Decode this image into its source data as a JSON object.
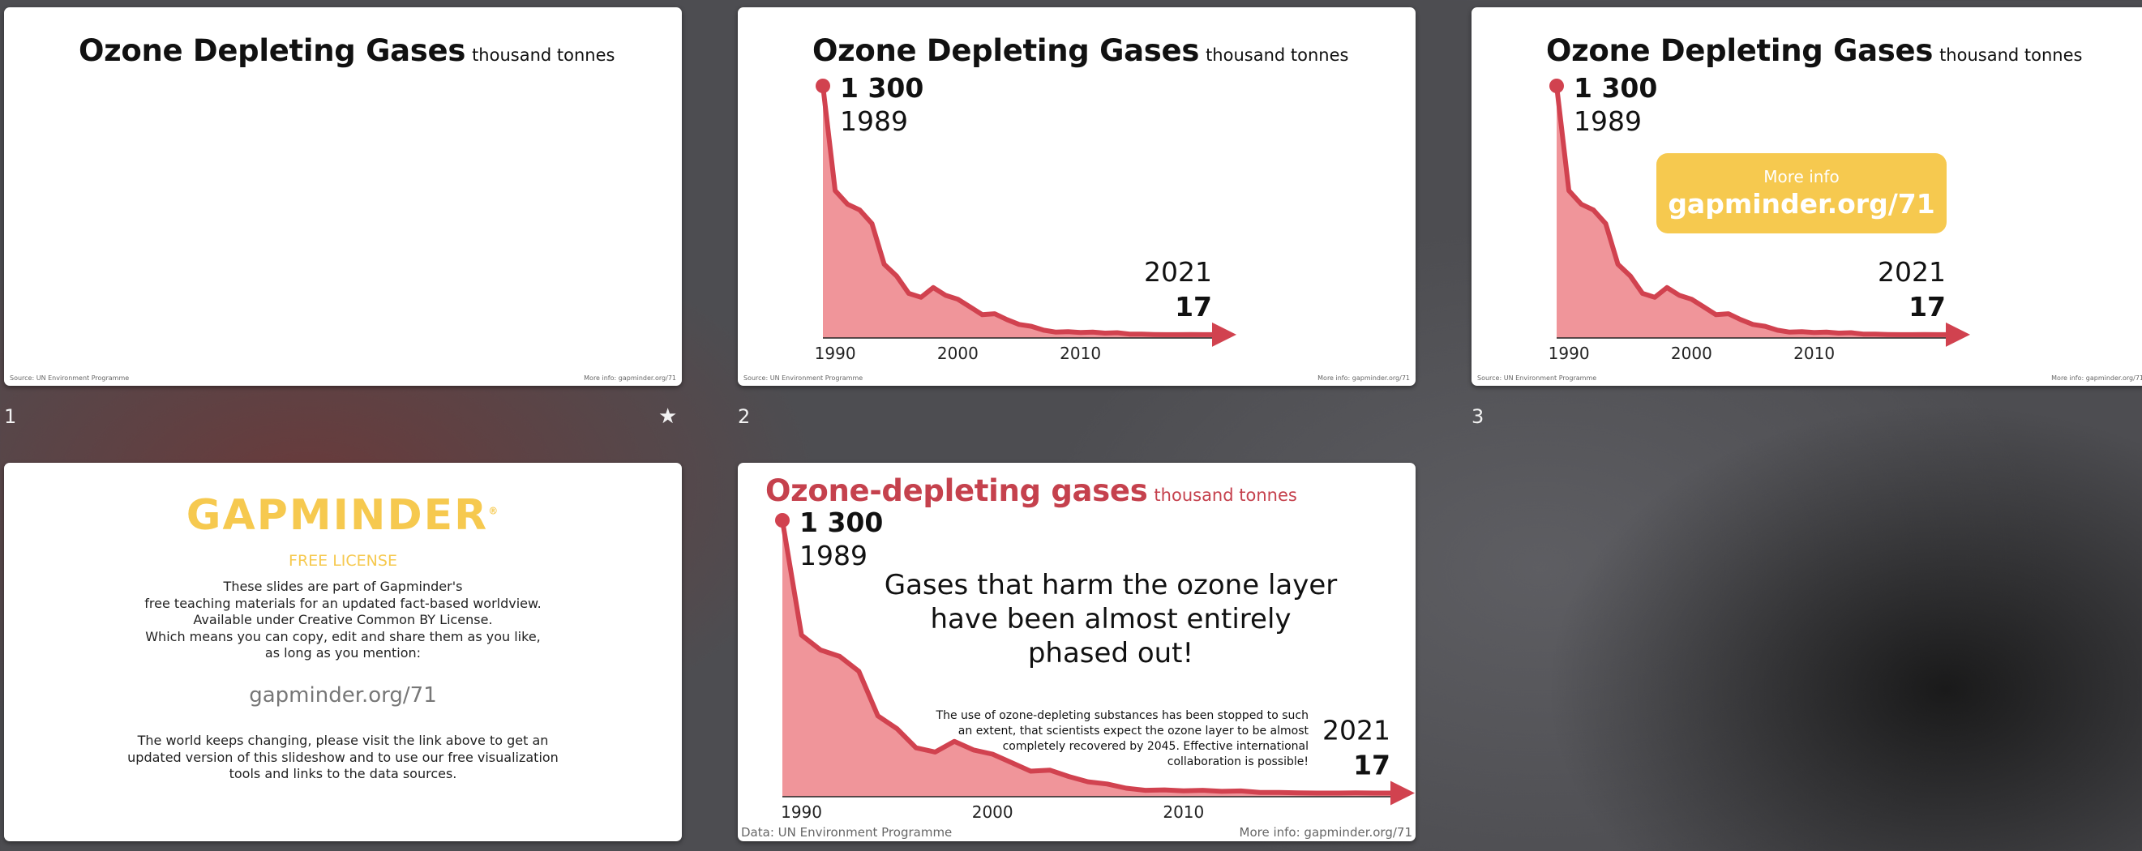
{
  "slides": [
    {
      "number": "1",
      "title": "Ozone Depleting Gases",
      "unit": "thousand tonnes",
      "source": "Source: UN Environment Programme",
      "more_info": "More info: gapminder.org/71",
      "has_chart": false,
      "star_icon": "★"
    },
    {
      "number": "2",
      "title": "Ozone Depleting Gases",
      "unit": "thousand tonnes",
      "source": "Source: UN Environment Programme",
      "more_info": "More info: gapminder.org/71",
      "has_chart": true
    },
    {
      "number": "3",
      "title": "Ozone Depleting Gases",
      "unit": "thousand tonnes",
      "source": "Source: UN Environment Programme",
      "more_info": "More info: gapminder.org/71",
      "has_chart": true,
      "info_box": {
        "small": "More info",
        "big": "gapminder.org/71"
      }
    },
    {
      "number": "",
      "logo": "GAPMINDER",
      "logo_mark": "®",
      "license_head": "FREE LICENSE",
      "license_lines": [
        "These slides are part of Gapminder's",
        "free teaching materials for an updated fact-based worldview.",
        "Available under Creative Common BY License.",
        "Which means you can copy, edit and share them as you like,",
        "as long as you mention:"
      ],
      "license_link": "gapminder.org/71",
      "license_bottom": [
        "The world keeps changing, please visit the link above to get an",
        "updated version of this slideshow and to use our free visualization",
        "tools and links to the data sources."
      ]
    },
    {
      "number": "",
      "title": "Ozone-depleting gases",
      "unit": "thousand tonnes",
      "source": "Data: UN Environment Programme",
      "more_info": "More info: gapminder.org/71",
      "has_chart": true,
      "headline": [
        "Gases that harm the ozone layer",
        "have been almost entirely",
        "phased out!"
      ],
      "body": [
        "The use of ozone-depleting substances has been stopped to such",
        "an extent, that scientists expect the ozone layer to be almost",
        "completely recovered by 2045. Effective international",
        "collaboration is possible!"
      ]
    }
  ],
  "chart_data": {
    "type": "area",
    "title": "Ozone Depleting Gases",
    "unit": "thousand tonnes",
    "color": "#d1424f",
    "fill_color": "#f0959a",
    "xlim": [
      1989,
      2021
    ],
    "ylim": [
      0,
      1300
    ],
    "x_ticks": [
      "1990",
      "2000",
      "2010"
    ],
    "start_label": {
      "year": "1989",
      "value": "1 300"
    },
    "end_label": {
      "year": "2021",
      "value": "17"
    },
    "x": [
      1989,
      1990,
      1991,
      1992,
      1993,
      1994,
      1995,
      1996,
      1997,
      1998,
      1999,
      2000,
      2001,
      2002,
      2003,
      2004,
      2005,
      2006,
      2007,
      2008,
      2009,
      2010,
      2011,
      2012,
      2013,
      2014,
      2015,
      2016,
      2017,
      2018,
      2019,
      2020,
      2021
    ],
    "values": [
      1300,
      760,
      690,
      660,
      590,
      380,
      320,
      230,
      210,
      260,
      220,
      200,
      160,
      120,
      125,
      95,
      70,
      60,
      40,
      30,
      32,
      28,
      30,
      25,
      27,
      20,
      20,
      18,
      17,
      17,
      18,
      17,
      17
    ]
  }
}
